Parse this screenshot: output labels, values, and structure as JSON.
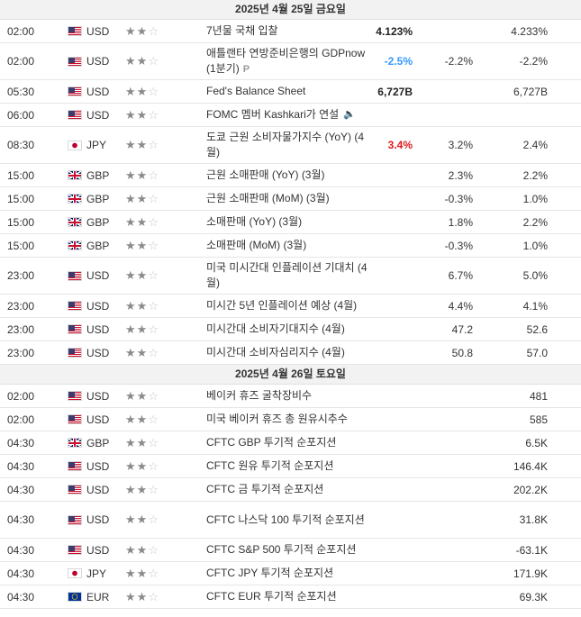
{
  "days": [
    {
      "header": "2025년 4월 25일 금요일",
      "rows": [
        {
          "time": "02:00",
          "flag": "us",
          "currency": "USD",
          "stars": 2,
          "event": "7년물 국채 입찰",
          "actual": "4.123%",
          "actual_color": "",
          "forecast": "",
          "previous": "4.233%",
          "h": 26,
          "badge": ""
        },
        {
          "time": "02:00",
          "flag": "us",
          "currency": "USD",
          "stars": 2,
          "event": "애틀랜타 연방준비은행의 GDPnow (1분기)",
          "actual": "-2.5%",
          "actual_color": "pos",
          "forecast": "-2.2%",
          "previous": "-2.2%",
          "h": 41,
          "badge": "P"
        },
        {
          "time": "05:30",
          "flag": "us",
          "currency": "USD",
          "stars": 2,
          "event": "Fed's Balance Sheet",
          "actual": "6,727B",
          "actual_color": "",
          "forecast": "",
          "previous": "6,727B",
          "h": 26,
          "badge": ""
        },
        {
          "time": "06:00",
          "flag": "us",
          "currency": "USD",
          "stars": 2,
          "event": "FOMC 멤버 Kashkari가 연설",
          "actual": "",
          "actual_color": "",
          "forecast": "",
          "previous": "",
          "h": 26,
          "badge": "speaker"
        },
        {
          "time": "08:30",
          "flag": "jp",
          "currency": "JPY",
          "stars": 2,
          "event": "도쿄 근원 소비자물가지수 (YoY) (4월)",
          "actual": "3.4%",
          "actual_color": "neg",
          "forecast": "3.2%",
          "previous": "2.4%",
          "h": 41,
          "badge": ""
        },
        {
          "time": "15:00",
          "flag": "gb",
          "currency": "GBP",
          "stars": 2,
          "event": "근원 소매판매 (YoY) (3월)",
          "actual": "",
          "actual_color": "",
          "forecast": "2.3%",
          "previous": "2.2%",
          "h": 26,
          "badge": ""
        },
        {
          "time": "15:00",
          "flag": "gb",
          "currency": "GBP",
          "stars": 2,
          "event": "근원 소매판매 (MoM) (3월)",
          "actual": "",
          "actual_color": "",
          "forecast": "-0.3%",
          "previous": "1.0%",
          "h": 26,
          "badge": ""
        },
        {
          "time": "15:00",
          "flag": "gb",
          "currency": "GBP",
          "stars": 2,
          "event": "소매판매 (YoY) (3월)",
          "actual": "",
          "actual_color": "",
          "forecast": "1.8%",
          "previous": "2.2%",
          "h": 26,
          "badge": ""
        },
        {
          "time": "15:00",
          "flag": "gb",
          "currency": "GBP",
          "stars": 2,
          "event": "소매판매 (MoM) (3월)",
          "actual": "",
          "actual_color": "",
          "forecast": "-0.3%",
          "previous": "1.0%",
          "h": 26,
          "badge": ""
        },
        {
          "time": "23:00",
          "flag": "us",
          "currency": "USD",
          "stars": 2,
          "event": "미국 미시간대 인플레이션 기대치 (4월)",
          "actual": "",
          "actual_color": "",
          "forecast": "6.7%",
          "previous": "5.0%",
          "h": 41,
          "badge": ""
        },
        {
          "time": "23:00",
          "flag": "us",
          "currency": "USD",
          "stars": 2,
          "event": "미시간 5년 인플레이션 예상 (4월)",
          "actual": "",
          "actual_color": "",
          "forecast": "4.4%",
          "previous": "4.1%",
          "h": 26,
          "badge": ""
        },
        {
          "time": "23:00",
          "flag": "us",
          "currency": "USD",
          "stars": 2,
          "event": "미시간대 소비자기대지수 (4월)",
          "actual": "",
          "actual_color": "",
          "forecast": "47.2",
          "previous": "52.6",
          "h": 26,
          "badge": ""
        },
        {
          "time": "23:00",
          "flag": "us",
          "currency": "USD",
          "stars": 2,
          "event": "미시간대 소비자심리지수 (4월)",
          "actual": "",
          "actual_color": "",
          "forecast": "50.8",
          "previous": "57.0",
          "h": 26,
          "badge": ""
        }
      ]
    },
    {
      "header": "2025년 4월 26일 토요일",
      "rows": [
        {
          "time": "02:00",
          "flag": "us",
          "currency": "USD",
          "stars": 2,
          "event": "베이커 휴즈 굴착장비수",
          "actual": "",
          "actual_color": "",
          "forecast": "",
          "previous": "481",
          "h": 26,
          "badge": ""
        },
        {
          "time": "02:00",
          "flag": "us",
          "currency": "USD",
          "stars": 2,
          "event": "미국 베이커 휴즈 총 원유시추수",
          "actual": "",
          "actual_color": "",
          "forecast": "",
          "previous": "585",
          "h": 26,
          "badge": ""
        },
        {
          "time": "04:30",
          "flag": "gb",
          "currency": "GBP",
          "stars": 2,
          "event": "CFTC GBP 투기적 순포지션",
          "actual": "",
          "actual_color": "",
          "forecast": "",
          "previous": "6.5K",
          "h": 26,
          "badge": ""
        },
        {
          "time": "04:30",
          "flag": "us",
          "currency": "USD",
          "stars": 2,
          "event": "CFTC 원유 투기적 순포지션",
          "actual": "",
          "actual_color": "",
          "forecast": "",
          "previous": "146.4K",
          "h": 26,
          "badge": ""
        },
        {
          "time": "04:30",
          "flag": "us",
          "currency": "USD",
          "stars": 2,
          "event": "CFTC 금 투기적 순포지션",
          "actual": "",
          "actual_color": "",
          "forecast": "",
          "previous": "202.2K",
          "h": 26,
          "badge": ""
        },
        {
          "time": "04:30",
          "flag": "us",
          "currency": "USD",
          "stars": 2,
          "event": "CFTC 나스닥 100 투기적 순포지션",
          "actual": "",
          "actual_color": "",
          "forecast": "",
          "previous": "31.8K",
          "h": 41,
          "badge": ""
        },
        {
          "time": "04:30",
          "flag": "us",
          "currency": "USD",
          "stars": 2,
          "event": "CFTC S&P 500 투기적 순포지션",
          "actual": "",
          "actual_color": "",
          "forecast": "",
          "previous": "-63.1K",
          "h": 26,
          "badge": ""
        },
        {
          "time": "04:30",
          "flag": "jp",
          "currency": "JPY",
          "stars": 2,
          "event": "CFTC JPY 투기적 순포지션",
          "actual": "",
          "actual_color": "",
          "forecast": "",
          "previous": "171.9K",
          "h": 26,
          "badge": ""
        },
        {
          "time": "04:30",
          "flag": "eu",
          "currency": "EUR",
          "stars": 2,
          "event": "CFTC EUR 투기적 순포지션",
          "actual": "",
          "actual_color": "",
          "forecast": "",
          "previous": "69.3K",
          "h": 26,
          "badge": ""
        }
      ]
    }
  ],
  "icons": {
    "star": "star-icon",
    "speaker": "speaker-icon",
    "preliminary": "preliminary-badge-icon"
  }
}
